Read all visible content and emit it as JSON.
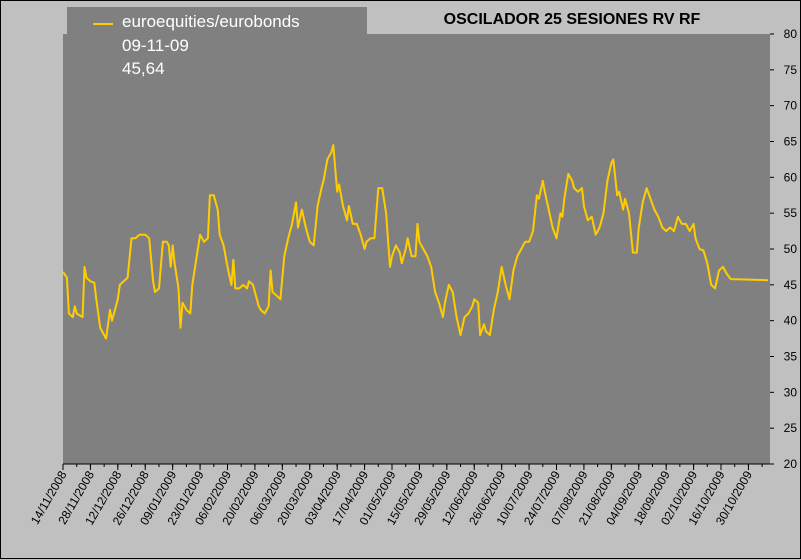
{
  "chart_data": {
    "type": "line",
    "title": "OSCILADOR 25 SESIONES RV RF",
    "legend": {
      "series_name": "euroequities/eurobonds",
      "last_date": "09-11-09",
      "last_value": "45,64",
      "placement": "top-left"
    },
    "y_axis": {
      "position": "right",
      "ylim": [
        20,
        80
      ],
      "ticks": [
        20,
        25,
        30,
        35,
        40,
        45,
        50,
        55,
        60,
        65,
        70,
        75,
        80
      ]
    },
    "x_axis": {
      "ticks": [
        "14/11/2008",
        "28/11/2008",
        "12/12/2008",
        "26/12/2008",
        "09/01/2009",
        "23/01/2009",
        "06/02/2009",
        "20/02/2009",
        "06/03/2009",
        "20/03/2009",
        "03/04/2009",
        "17/04/2009",
        "01/05/2009",
        "15/05/2009",
        "29/05/2009",
        "12/06/2009",
        "26/06/2009",
        "10/07/2009",
        "24/07/2009",
        "07/08/2009",
        "21/08/2009",
        "04/09/2009",
        "18/09/2009",
        "02/10/2009",
        "16/10/2009",
        "30/10/2009"
      ],
      "range": [
        "14/11/2008",
        "09/11/2009"
      ]
    },
    "grid": false,
    "colors": {
      "background": "#c0c0c0",
      "plot_area": "#808080",
      "legend_box": "#808080",
      "line": "#ffcc00"
    },
    "series": [
      {
        "name": "euroequities/eurobonds",
        "points": [
          [
            "14/11/2008",
            46.8
          ],
          [
            "16/11/2008",
            46.0
          ],
          [
            "17/11/2008",
            41.0
          ],
          [
            "19/11/2008",
            40.5
          ],
          [
            "20/11/2008",
            42.0
          ],
          [
            "21/11/2008",
            41.0
          ],
          [
            "24/11/2008",
            40.5
          ],
          [
            "25/11/2008",
            47.5
          ],
          [
            "26/11/2008",
            46.0
          ],
          [
            "28/11/2008",
            45.5
          ],
          [
            "30/11/2008",
            45.3
          ],
          [
            "01/12/2008",
            43.0
          ],
          [
            "03/12/2008",
            39.0
          ],
          [
            "05/12/2008",
            38.0
          ],
          [
            "06/12/2008",
            37.5
          ],
          [
            "08/12/2008",
            41.5
          ],
          [
            "09/12/2008",
            40.0
          ],
          [
            "11/12/2008",
            42.0
          ],
          [
            "12/12/2008",
            43.0
          ],
          [
            "13/12/2008",
            45.0
          ],
          [
            "15/12/2008",
            45.5
          ],
          [
            "17/12/2008",
            46.0
          ],
          [
            "19/12/2008",
            51.5
          ],
          [
            "21/12/2008",
            51.5
          ],
          [
            "23/12/2008",
            52.0
          ],
          [
            "26/12/2008",
            52.0
          ],
          [
            "28/12/2008",
            51.5
          ],
          [
            "30/12/2008",
            45.5
          ],
          [
            "31/12/2008",
            44.0
          ],
          [
            "02/01/2009",
            44.5
          ],
          [
            "04/01/2009",
            51.0
          ],
          [
            "06/01/2009",
            51.0
          ],
          [
            "07/01/2009",
            50.5
          ],
          [
            "08/01/2009",
            47.5
          ],
          [
            "09/01/2009",
            50.5
          ],
          [
            "10/01/2009",
            48.0
          ],
          [
            "12/01/2009",
            44.5
          ],
          [
            "13/01/2009",
            39.0
          ],
          [
            "14/01/2009",
            42.5
          ],
          [
            "16/01/2009",
            41.5
          ],
          [
            "18/01/2009",
            41.0
          ],
          [
            "19/01/2009",
            45.0
          ],
          [
            "21/01/2009",
            48.5
          ],
          [
            "23/01/2009",
            52.0
          ],
          [
            "25/01/2009",
            51.0
          ],
          [
            "27/01/2009",
            51.5
          ],
          [
            "28/01/2009",
            57.5
          ],
          [
            "30/01/2009",
            57.5
          ],
          [
            "01/02/2009",
            55.5
          ],
          [
            "02/02/2009",
            52.0
          ],
          [
            "04/02/2009",
            50.5
          ],
          [
            "06/02/2009",
            47.5
          ],
          [
            "08/02/2009",
            45.0
          ],
          [
            "09/02/2009",
            48.5
          ],
          [
            "10/02/2009",
            44.5
          ],
          [
            "12/02/2009",
            44.5
          ],
          [
            "14/02/2009",
            45.0
          ],
          [
            "16/02/2009",
            44.5
          ],
          [
            "17/02/2009",
            45.5
          ],
          [
            "19/02/2009",
            45.0
          ],
          [
            "20/02/2009",
            44.0
          ],
          [
            "22/02/2009",
            42.0
          ],
          [
            "23/02/2009",
            41.5
          ],
          [
            "25/02/2009",
            41.0
          ],
          [
            "27/02/2009",
            42.0
          ],
          [
            "28/02/2009",
            47.0
          ],
          [
            "01/03/2009",
            44.0
          ],
          [
            "03/03/2009",
            43.5
          ],
          [
            "05/03/2009",
            43.0
          ],
          [
            "07/03/2009",
            49.0
          ],
          [
            "09/03/2009",
            51.5
          ],
          [
            "11/03/2009",
            53.5
          ],
          [
            "13/03/2009",
            56.5
          ],
          [
            "14/03/2009",
            53.0
          ],
          [
            "16/03/2009",
            55.5
          ],
          [
            "18/03/2009",
            53.0
          ],
          [
            "20/03/2009",
            51.0
          ],
          [
            "22/03/2009",
            50.5
          ],
          [
            "24/03/2009",
            56.0
          ],
          [
            "26/03/2009",
            58.5
          ],
          [
            "27/03/2009",
            59.5
          ],
          [
            "29/03/2009",
            62.5
          ],
          [
            "31/03/2009",
            63.5
          ],
          [
            "01/04/2009",
            64.5
          ],
          [
            "03/04/2009",
            58.0
          ],
          [
            "04/04/2009",
            59.0
          ],
          [
            "06/04/2009",
            56.0
          ],
          [
            "08/04/2009",
            54.0
          ],
          [
            "09/04/2009",
            56.0
          ],
          [
            "11/04/2009",
            53.5
          ],
          [
            "13/04/2009",
            53.5
          ],
          [
            "15/04/2009",
            52.0
          ],
          [
            "17/04/2009",
            50.0
          ],
          [
            "18/04/2009",
            51.0
          ],
          [
            "20/04/2009",
            51.5
          ],
          [
            "22/04/2009",
            51.5
          ],
          [
            "24/04/2009",
            58.5
          ],
          [
            "26/04/2009",
            58.5
          ],
          [
            "28/04/2009",
            55.0
          ],
          [
            "30/04/2009",
            47.5
          ],
          [
            "01/05/2009",
            49.0
          ],
          [
            "03/05/2009",
            50.5
          ],
          [
            "05/05/2009",
            49.5
          ],
          [
            "06/05/2009",
            48.0
          ],
          [
            "08/05/2009",
            50.0
          ],
          [
            "09/05/2009",
            51.5
          ],
          [
            "11/05/2009",
            49.0
          ],
          [
            "13/05/2009",
            49.0
          ],
          [
            "14/05/2009",
            53.5
          ],
          [
            "15/05/2009",
            51.0
          ],
          [
            "17/05/2009",
            50.0
          ],
          [
            "19/05/2009",
            49.0
          ],
          [
            "21/05/2009",
            47.5
          ],
          [
            "23/05/2009",
            44.0
          ],
          [
            "25/05/2009",
            42.5
          ],
          [
            "27/05/2009",
            40.5
          ],
          [
            "28/05/2009",
            42.5
          ],
          [
            "30/05/2009",
            45.0
          ],
          [
            "01/06/2009",
            44.0
          ],
          [
            "03/06/2009",
            40.5
          ],
          [
            "05/06/2009",
            38.0
          ],
          [
            "07/06/2009",
            40.5
          ],
          [
            "09/06/2009",
            41.0
          ],
          [
            "11/06/2009",
            42.0
          ],
          [
            "12/06/2009",
            43.0
          ],
          [
            "14/06/2009",
            42.5
          ],
          [
            "15/06/2009",
            38.0
          ],
          [
            "17/06/2009",
            39.5
          ],
          [
            "18/06/2009",
            38.5
          ],
          [
            "20/06/2009",
            38.0
          ],
          [
            "22/06/2009",
            41.5
          ],
          [
            "24/06/2009",
            44.0
          ],
          [
            "26/06/2009",
            47.5
          ],
          [
            "28/06/2009",
            45.0
          ],
          [
            "30/06/2009",
            43.0
          ],
          [
            "02/07/2009",
            47.0
          ],
          [
            "04/07/2009",
            49.0
          ],
          [
            "06/07/2009",
            50.0
          ],
          [
            "08/07/2009",
            51.0
          ],
          [
            "10/07/2009",
            51.0
          ],
          [
            "12/07/2009",
            52.5
          ],
          [
            "14/07/2009",
            57.5
          ],
          [
            "15/07/2009",
            57.0
          ],
          [
            "17/07/2009",
            59.5
          ],
          [
            "18/07/2009",
            58.0
          ],
          [
            "20/07/2009",
            55.5
          ],
          [
            "22/07/2009",
            53.0
          ],
          [
            "24/07/2009",
            51.5
          ],
          [
            "26/07/2009",
            55.0
          ],
          [
            "27/07/2009",
            54.5
          ],
          [
            "28/07/2009",
            57.0
          ],
          [
            "30/07/2009",
            60.5
          ],
          [
            "01/08/2009",
            59.5
          ],
          [
            "02/08/2009",
            58.5
          ],
          [
            "04/08/2009",
            58.0
          ],
          [
            "06/08/2009",
            58.5
          ],
          [
            "07/08/2009",
            56.0
          ],
          [
            "09/08/2009",
            54.0
          ],
          [
            "11/08/2009",
            54.5
          ],
          [
            "13/08/2009",
            52.0
          ],
          [
            "15/08/2009",
            53.0
          ],
          [
            "17/08/2009",
            55.0
          ],
          [
            "19/08/2009",
            59.5
          ],
          [
            "21/08/2009",
            62.0
          ],
          [
            "22/08/2009",
            62.5
          ],
          [
            "24/08/2009",
            57.5
          ],
          [
            "25/08/2009",
            58.0
          ],
          [
            "27/08/2009",
            55.5
          ],
          [
            "28/08/2009",
            57.0
          ],
          [
            "30/08/2009",
            55.0
          ],
          [
            "01/09/2009",
            49.5
          ],
          [
            "03/09/2009",
            49.5
          ],
          [
            "04/09/2009",
            53.0
          ],
          [
            "06/09/2009",
            56.5
          ],
          [
            "08/09/2009",
            58.5
          ],
          [
            "10/09/2009",
            57.0
          ],
          [
            "12/09/2009",
            55.5
          ],
          [
            "14/09/2009",
            54.5
          ],
          [
            "16/09/2009",
            53.0
          ],
          [
            "18/09/2009",
            52.5
          ],
          [
            "20/09/2009",
            53.0
          ],
          [
            "22/09/2009",
            52.5
          ],
          [
            "24/09/2009",
            54.5
          ],
          [
            "26/09/2009",
            53.5
          ],
          [
            "28/09/2009",
            53.5
          ],
          [
            "30/09/2009",
            52.5
          ],
          [
            "02/10/2009",
            53.5
          ],
          [
            "03/10/2009",
            51.5
          ],
          [
            "05/10/2009",
            50.0
          ],
          [
            "07/10/2009",
            49.8
          ],
          [
            "09/10/2009",
            48.0
          ],
          [
            "11/10/2009",
            45.0
          ],
          [
            "13/10/2009",
            44.5
          ],
          [
            "15/10/2009",
            47.0
          ],
          [
            "17/10/2009",
            47.5
          ],
          [
            "19/10/2009",
            46.5
          ],
          [
            "21/10/2009",
            45.8
          ],
          [
            "09/11/2009",
            45.64
          ]
        ]
      }
    ]
  }
}
